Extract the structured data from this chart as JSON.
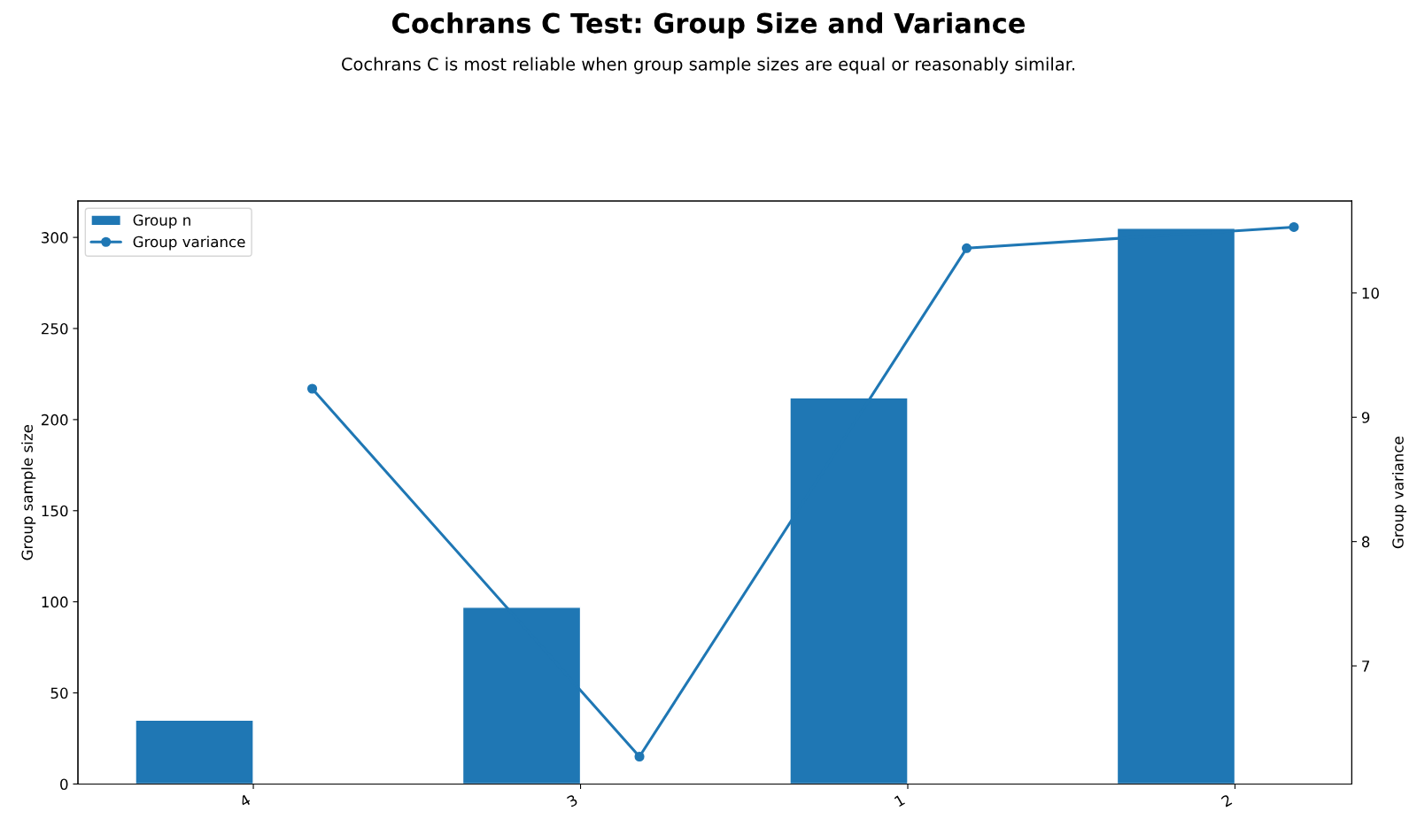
{
  "chart_data": {
    "type": "bar",
    "title": "Cochrans C Test: Group Size and Variance",
    "subtitle": "Cochrans C is most reliable when group sample sizes are equal or reasonably similar.",
    "ylabel": "Group sample size",
    "y2label": "Group variance",
    "categories": [
      "4",
      "3",
      "1",
      "2"
    ],
    "series": [
      {
        "name": "Group n",
        "color": "#1f77b4",
        "values": [
          35,
          97,
          212,
          305
        ]
      },
      {
        "name": "Group variance",
        "type": "line",
        "axis": "y2",
        "color": "#1f77b4",
        "marker": "circle",
        "line_style": "solid",
        "values": [
          9.23,
          6.27,
          10.36,
          10.53
        ]
      }
    ],
    "ylim": [
      0,
      320
    ],
    "yticks": [
      0,
      50,
      100,
      150,
      200,
      250,
      300
    ],
    "y2lim": [
      6.05,
      10.74
    ],
    "y2ticks": [
      7,
      8,
      9,
      10
    ],
    "legend": "top left",
    "grid": false
  }
}
